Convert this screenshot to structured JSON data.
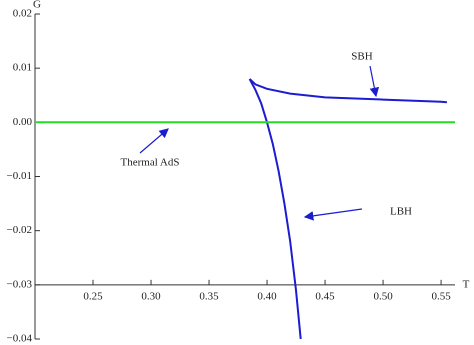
{
  "chart_data": {
    "type": "line",
    "x_label": "T",
    "y_label": "G",
    "xlim": [
      0.2,
      0.562
    ],
    "ylim": [
      -0.04,
      0.02
    ],
    "xticks": [
      0.25,
      {
        "value": 0.3,
        "label": "0.30"
      },
      0.35,
      {
        "value": 0.4,
        "label": "0.40"
      },
      0.45,
      {
        "value": 0.5,
        "label": "0.50"
      },
      0.55
    ],
    "yticks": [
      {
        "value": -0.04,
        "label": "−0.04"
      },
      {
        "value": -0.03,
        "label": "−0.03"
      },
      {
        "value": -0.02,
        "label": "−0.02"
      },
      {
        "value": -0.01,
        "label": "−0.01"
      },
      {
        "value": 0,
        "label": "0.00"
      },
      0.01,
      0.02
    ],
    "series": [
      {
        "name": "SBH",
        "color": "#1c1cd0",
        "x": [
          0.385,
          0.39,
          0.4,
          0.42,
          0.45,
          0.5,
          0.55,
          0.555
        ],
        "values": [
          0.008,
          0.007,
          0.0062,
          0.0053,
          0.0046,
          0.0042,
          0.0038,
          0.0037
        ]
      },
      {
        "name": "LBH",
        "color": "#1c1cd0",
        "x": [
          0.385,
          0.39,
          0.395,
          0.4,
          0.405,
          0.41,
          0.415,
          0.42,
          0.425,
          0.429
        ],
        "values": [
          0.008,
          0.006,
          0.0035,
          0.0,
          -0.004,
          -0.009,
          -0.015,
          -0.022,
          -0.031,
          -0.04
        ]
      },
      {
        "name": "Thermal AdS",
        "color": "#22dd22",
        "x": [
          0.2,
          0.562
        ],
        "values": [
          0,
          0
        ]
      }
    ]
  }
}
